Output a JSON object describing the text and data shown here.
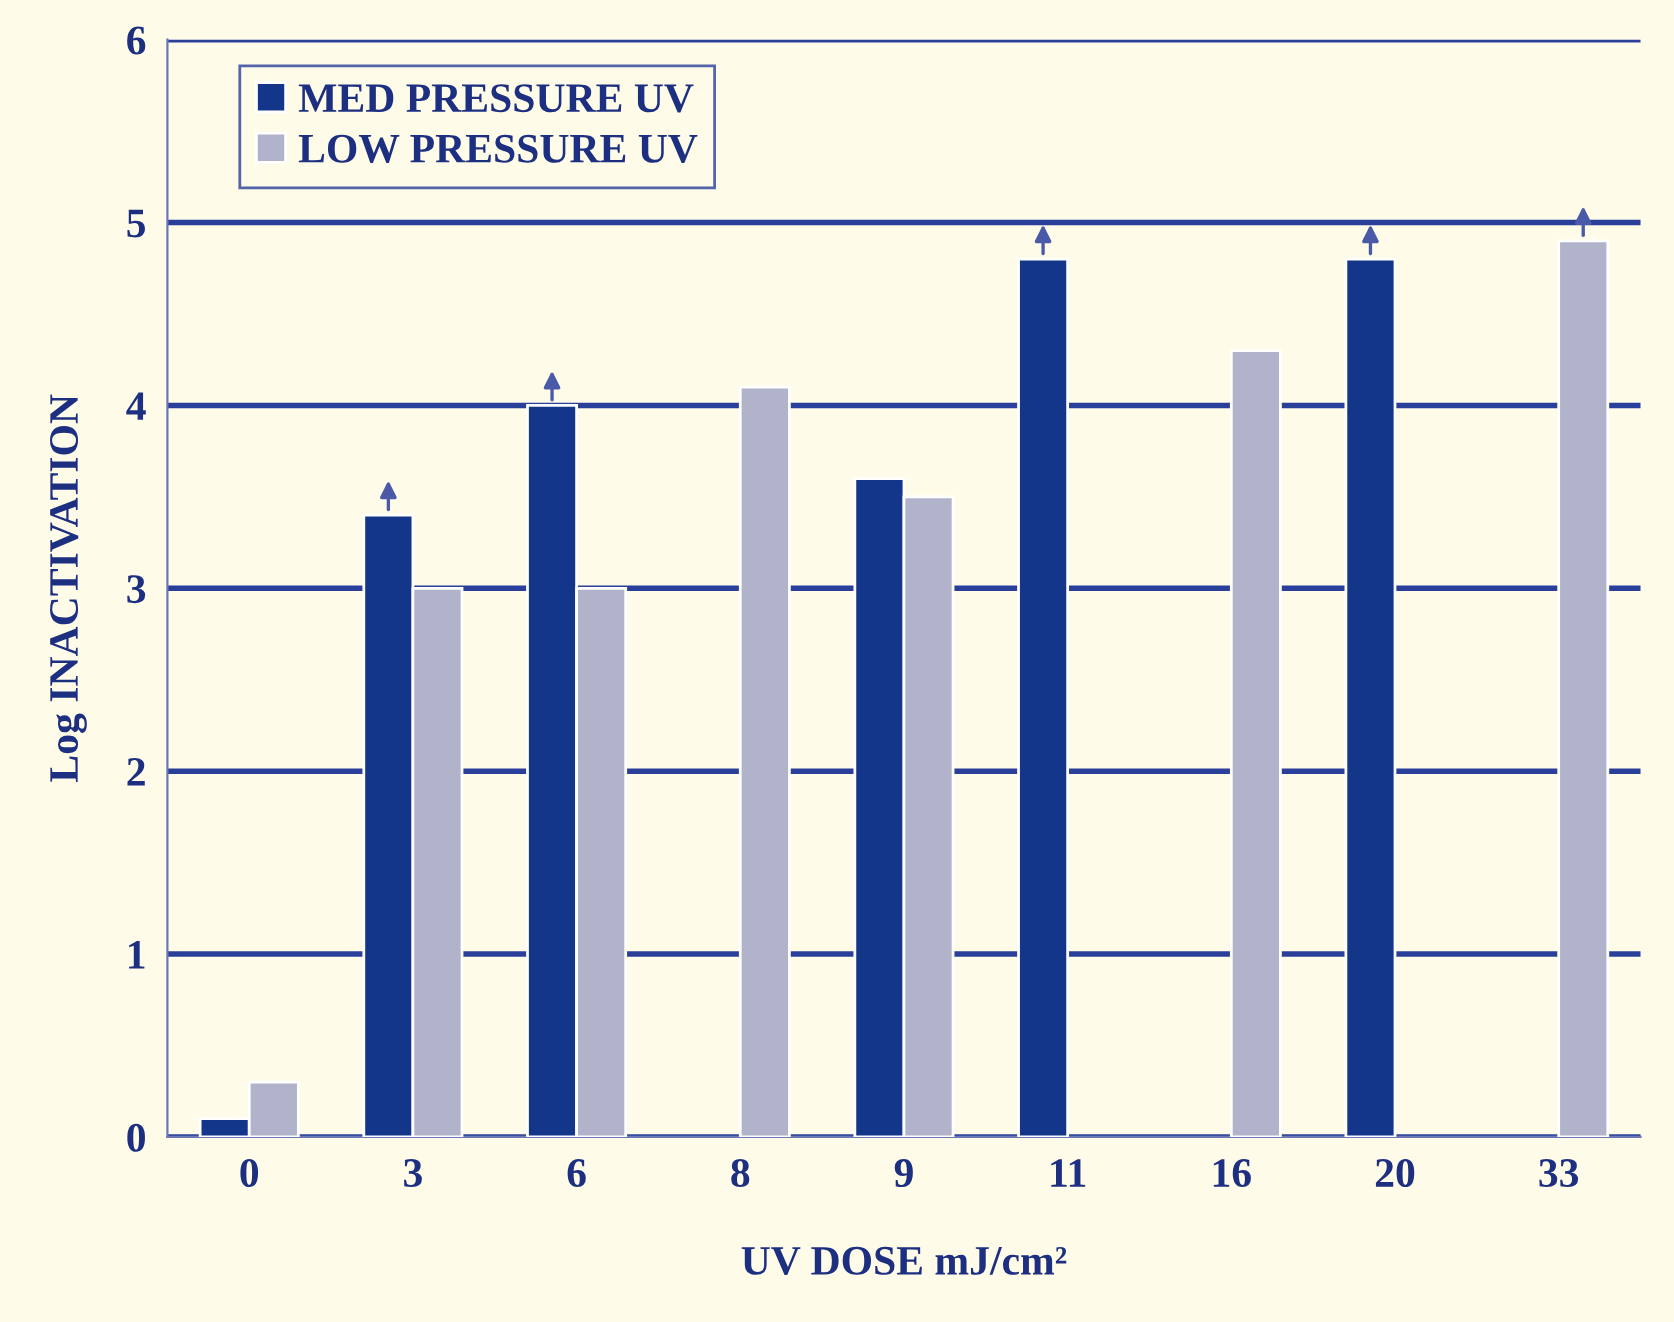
{
  "chart_data": {
    "type": "bar",
    "xlabel": "UV DOSE mJ/cm²",
    "ylabel": "Log INACTIVATION",
    "categories": [
      "0",
      "3",
      "6",
      "8",
      "9",
      "11",
      "16",
      "20",
      "33"
    ],
    "series": [
      {
        "name": "MED PRESSURE UV",
        "color": "#13368a",
        "values": [
          0.1,
          3.4,
          4.0,
          null,
          3.6,
          4.8,
          null,
          4.8,
          null
        ]
      },
      {
        "name": "LOW PRESSURE UV",
        "color": "#b0b3c9",
        "values": [
          0.3,
          3.0,
          3.0,
          4.1,
          3.5,
          null,
          4.3,
          null,
          4.9
        ]
      }
    ],
    "ylim": [
      0,
      6
    ],
    "yticks": [
      0,
      1,
      2,
      3,
      4,
      5,
      6
    ],
    "grid": "y",
    "legend": "top left"
  }
}
